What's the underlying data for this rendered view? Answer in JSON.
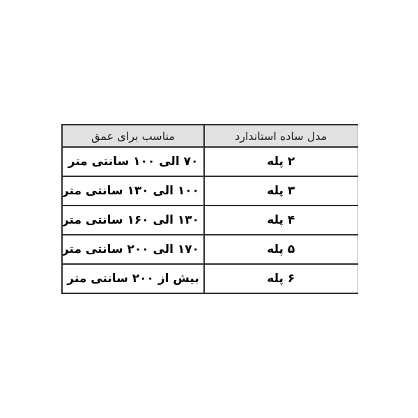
{
  "chart_data": {
    "type": "table",
    "direction": "rtl",
    "columns": [
      "مدل ساده استاندارد",
      "مناسب برای عمق"
    ],
    "rows": [
      [
        "۲ پله",
        "۷۰ الی ۱۰۰ سانتی متر"
      ],
      [
        "۳ پله",
        "۱۰۰ الی ۱۳۰ سانتی متر"
      ],
      [
        "۴ پله",
        "۱۳۰ الی ۱۶۰ سانتی متر"
      ],
      [
        "۵ پله",
        "۱۷۰ الی ۲۰۰ سانتی متر"
      ],
      [
        "۶ پله",
        "بیش از ۲۰۰ سانتی متر"
      ]
    ]
  },
  "colors": {
    "header_bg": "#e1e1e1",
    "border": "#2e2e2e",
    "outer_right_border": "#c9c9c9",
    "text": "#111111",
    "page_bg": "#ffffff"
  }
}
